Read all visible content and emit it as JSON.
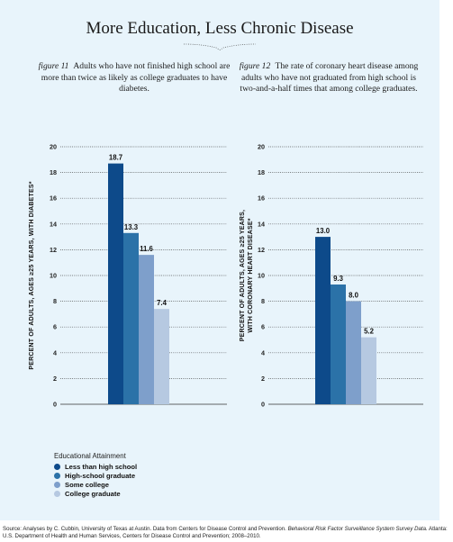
{
  "title": "More Education, Less Chronic Disease",
  "captions": [
    {
      "figure": "figure 11",
      "text": "Adults who have not finished high school are more than twice as likely as college graduates to have diabetes."
    },
    {
      "figure": "figure 12",
      "text": "The rate of coronary heart disease among adults who have not graduated from high school is two-and-a-half times that among college graduates."
    }
  ],
  "colors": {
    "background": "#e8f4fb",
    "gridline": "#333333"
  },
  "chart_data": [
    {
      "type": "bar",
      "ylabel": "PERCENT OF ADULTS, AGES ≥25 YEARS, WITH DIABETES*",
      "ylim": [
        0,
        20
      ],
      "yticks": [
        "0",
        "2",
        "4",
        "6",
        "8",
        "10",
        "12",
        "14",
        "16",
        "18",
        "20"
      ],
      "grid": true,
      "categories": [
        "Less than high school",
        "High-school graduate",
        "Some college",
        "College graduate"
      ],
      "values": [
        18.7,
        13.3,
        11.6,
        7.4
      ],
      "value_labels": [
        "18.7",
        "13.3",
        "11.6",
        "7.4"
      ],
      "colors": [
        "#0d4a8a",
        "#2b72a8",
        "#7e9fcb",
        "#b6c9e1"
      ]
    },
    {
      "type": "bar",
      "ylabel_lines": [
        "PERCENT OF ADULTS, AGES ≥25 YEARS,",
        "WITH CORONARY HEART DISEASE*"
      ],
      "ylim": [
        0,
        20
      ],
      "yticks": [
        "0",
        "2",
        "4",
        "6",
        "8",
        "10",
        "12",
        "14",
        "16",
        "18",
        "20"
      ],
      "grid": true,
      "categories": [
        "Less than high school",
        "High-school graduate",
        "Some college",
        "College graduate"
      ],
      "values": [
        13.0,
        9.3,
        8.0,
        5.2
      ],
      "value_labels": [
        "13.0",
        "9.3",
        "8.0",
        "5.2"
      ],
      "colors": [
        "#0d4a8a",
        "#2b72a8",
        "#7e9fcb",
        "#b6c9e1"
      ]
    }
  ],
  "legend": {
    "title": "Educational Attainment",
    "items": [
      {
        "label": "Less than high school",
        "color": "#0d4a8a"
      },
      {
        "label": "High-school graduate",
        "color": "#2b72a8"
      },
      {
        "label": "Some college",
        "color": "#7e9fcb"
      },
      {
        "label": "College graduate",
        "color": "#b6c9e1"
      }
    ]
  },
  "source": {
    "text_before": "Source: Analyses by C. Cubbin, University of Texas at Austin. Data from Centers for Disease Control and Prevention. ",
    "italic": "Behavioral Risk Factor Surveillance System Survey Data.",
    "text_after": " Atlanta: U.S. Department of Health and Human Services, Centers for Disease Control and Prevention; 2008–2010."
  }
}
